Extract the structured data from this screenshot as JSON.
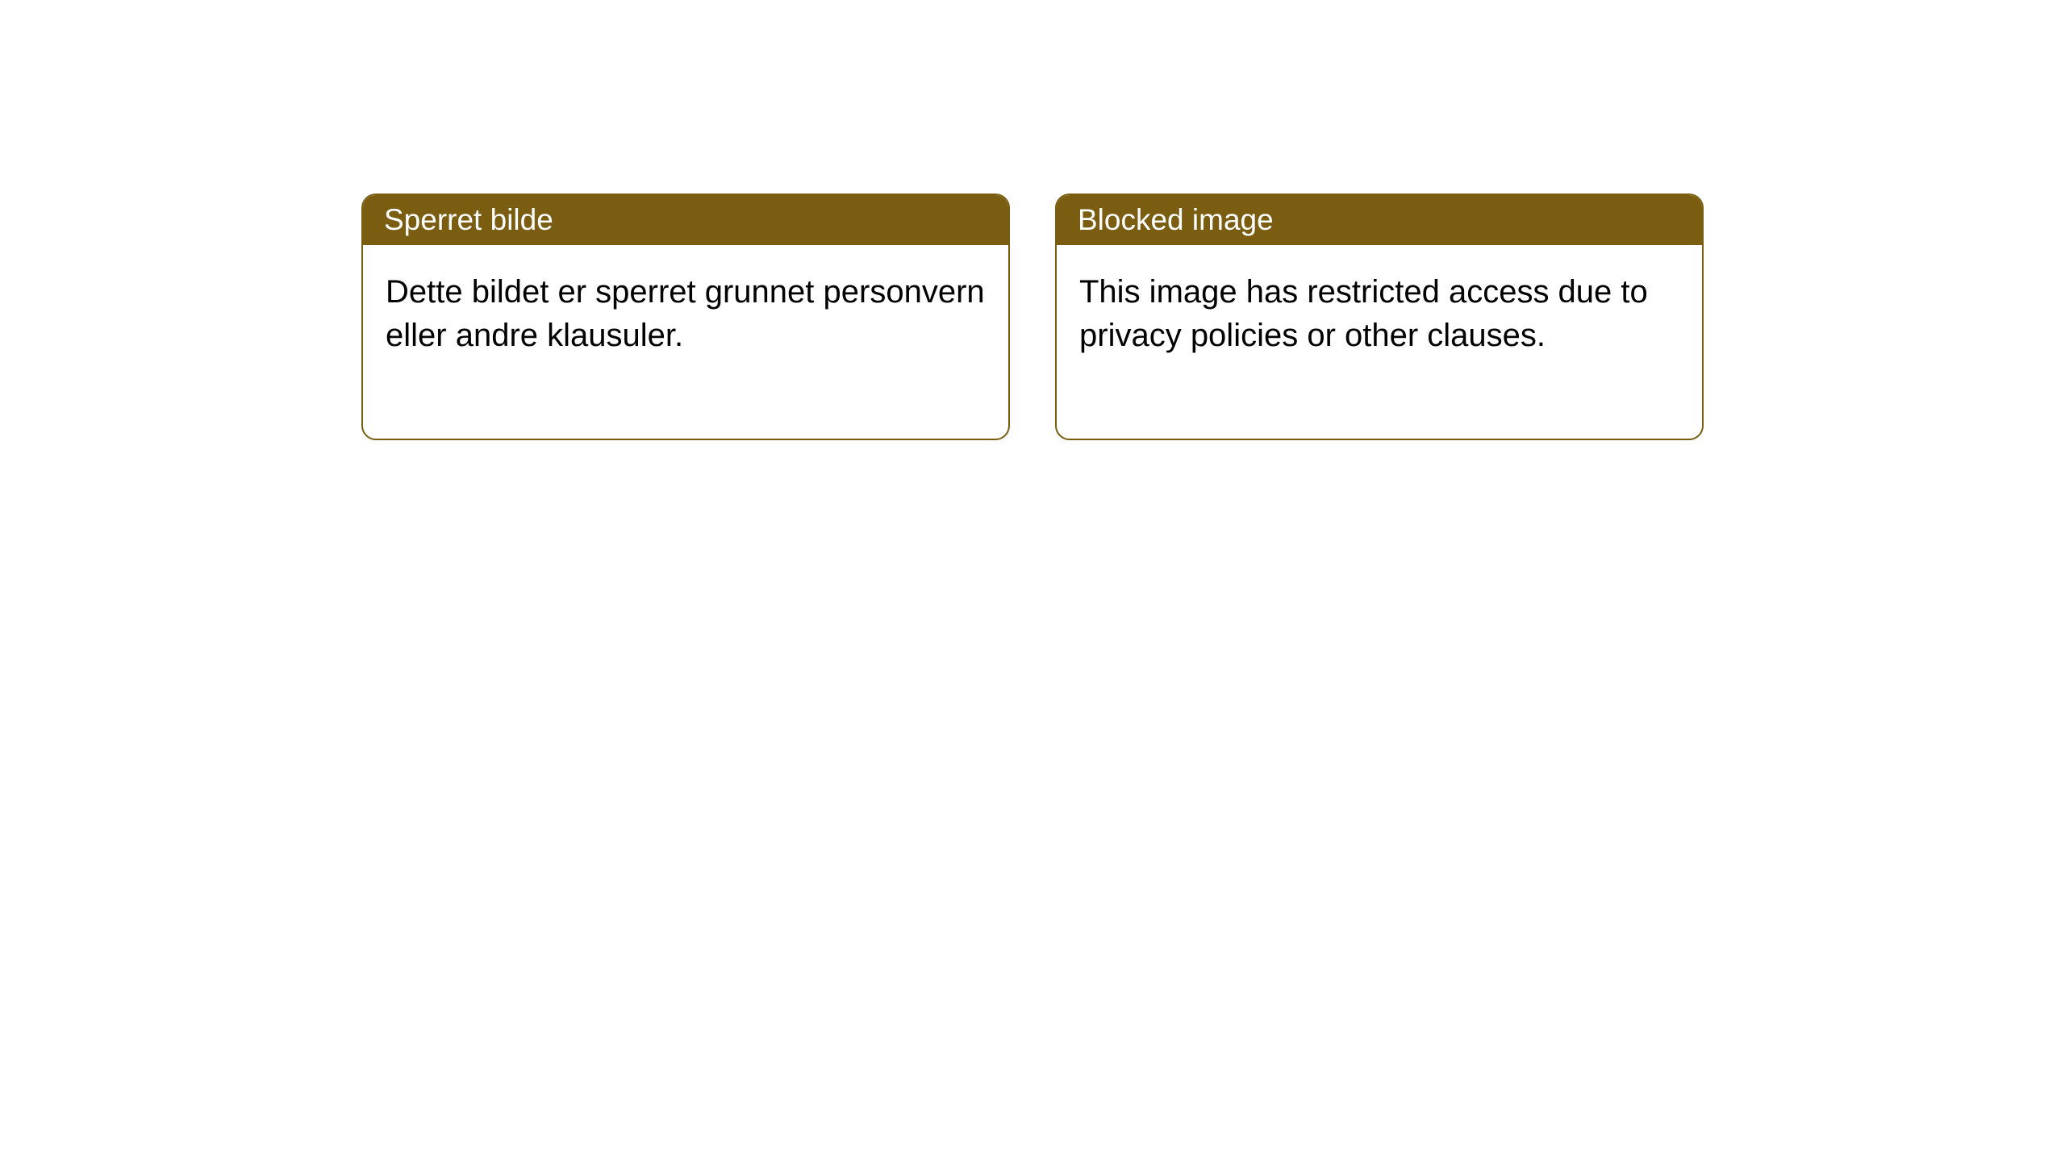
{
  "notices": [
    {
      "title": "Sperret bilde",
      "body": "Dette bildet er sperret grunnet personvern eller andre klausuler."
    },
    {
      "title": "Blocked image",
      "body": "This image has restricted access due to privacy policies or other clauses."
    }
  ],
  "styling": {
    "header_bg_color": "#7a5d11",
    "header_text_color": "#ffffff",
    "border_color": "#7a5d11",
    "body_bg_color": "#ffffff",
    "body_text_color": "#000000",
    "border_radius": 18,
    "title_fontsize": 37,
    "body_fontsize": 40
  }
}
